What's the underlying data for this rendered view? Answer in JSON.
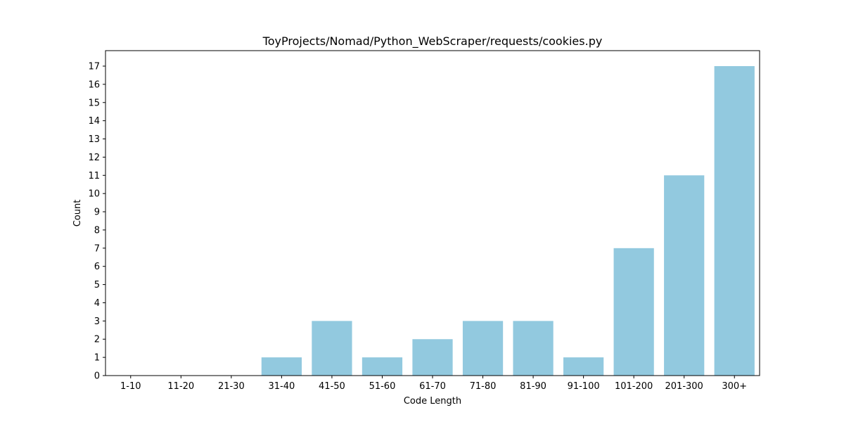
{
  "chart_data": {
    "type": "bar",
    "title": "ToyProjects/Nomad/Python_WebScraper/requests/cookies.py",
    "xlabel": "Code Length",
    "ylabel": "Count",
    "categories": [
      "1-10",
      "11-20",
      "21-30",
      "31-40",
      "41-50",
      "51-60",
      "61-70",
      "71-80",
      "81-90",
      "91-100",
      "101-200",
      "201-300",
      "300+"
    ],
    "values": [
      0,
      0,
      0,
      1,
      3,
      1,
      2,
      3,
      3,
      1,
      7,
      11,
      17
    ],
    "ylim": [
      0,
      17.85
    ],
    "yticks": [
      0,
      1,
      2,
      3,
      4,
      5,
      6,
      7,
      8,
      9,
      10,
      11,
      12,
      13,
      14,
      15,
      16,
      17
    ],
    "grid": false,
    "bar_color": "#92c9df"
  }
}
